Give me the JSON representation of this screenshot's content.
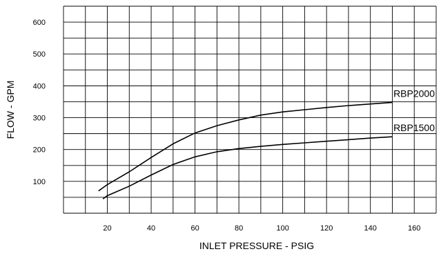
{
  "chart_data": {
    "type": "line",
    "xlabel": "INLET PRESSURE - PSIG",
    "ylabel": "FLOW - GPM",
    "xlim": [
      0,
      170
    ],
    "ylim": [
      0,
      650
    ],
    "x_ticks": [
      20,
      40,
      60,
      80,
      100,
      120,
      140,
      160
    ],
    "y_ticks": [
      100,
      200,
      300,
      400,
      500,
      600
    ],
    "x_grid_step": 10,
    "y_grid_step": 50,
    "grid": true,
    "series": [
      {
        "name": "RBP2000",
        "x": [
          16,
          20,
          30,
          40,
          50,
          60,
          70,
          80,
          90,
          100,
          110,
          120,
          130,
          140,
          150
        ],
        "y": [
          70,
          90,
          130,
          175,
          218,
          252,
          275,
          293,
          308,
          318,
          325,
          332,
          338,
          343,
          348
        ]
      },
      {
        "name": "RBP1500",
        "x": [
          18,
          20,
          30,
          40,
          50,
          60,
          70,
          80,
          90,
          100,
          110,
          120,
          130,
          140,
          150
        ],
        "y": [
          45,
          55,
          85,
          120,
          153,
          177,
          193,
          203,
          210,
          216,
          221,
          226,
          231,
          236,
          240
        ]
      }
    ]
  }
}
